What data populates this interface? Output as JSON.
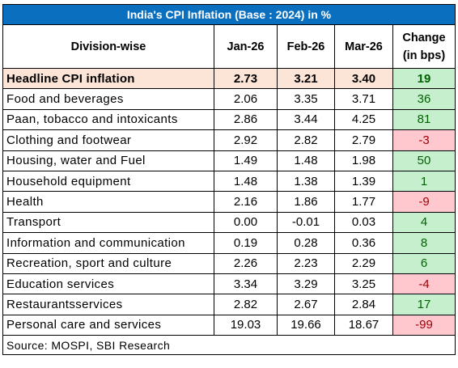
{
  "title": "India's CPI Inflation (Base : 2024) in %",
  "headers": {
    "division": "Division-wise",
    "jan": "Jan-26",
    "feb": "Feb-26",
    "mar": "Mar-26",
    "change_line1": "Change",
    "change_line2": "(in bps)"
  },
  "rows": [
    {
      "name": "Headline CPI inflation",
      "jan": "2.73",
      "feb": "3.21",
      "mar": "3.40",
      "change": "19",
      "sign": "pos",
      "headline": true
    },
    {
      "name": "Food and beverages",
      "jan": "2.06",
      "feb": "3.35",
      "mar": "3.71",
      "change": "36",
      "sign": "pos"
    },
    {
      "name": "Paan, tobacco and intoxicants",
      "jan": "2.86",
      "feb": "3.44",
      "mar": "4.25",
      "change": "81",
      "sign": "pos"
    },
    {
      "name": "Clothing and footwear",
      "jan": "2.92",
      "feb": "2.82",
      "mar": "2.79",
      "change": "-3",
      "sign": "neg"
    },
    {
      "name": "Housing, water and Fuel",
      "jan": "1.49",
      "feb": "1.48",
      "mar": "1.98",
      "change": "50",
      "sign": "pos"
    },
    {
      "name": "Household equipment",
      "jan": "1.48",
      "feb": "1.38",
      "mar": "1.39",
      "change": "1",
      "sign": "pos"
    },
    {
      "name": "Health",
      "jan": "2.16",
      "feb": "1.86",
      "mar": "1.77",
      "change": "-9",
      "sign": "neg"
    },
    {
      "name": "Transport",
      "jan": "0.00",
      "feb": "-0.01",
      "mar": "0.03",
      "change": "4",
      "sign": "pos"
    },
    {
      "name": "Information and communication",
      "jan": "0.19",
      "feb": "0.28",
      "mar": "0.36",
      "change": "8",
      "sign": "pos"
    },
    {
      "name": "Recreation, sport and culture",
      "jan": "2.26",
      "feb": "2.23",
      "mar": "2.29",
      "change": "6",
      "sign": "pos"
    },
    {
      "name": "Education services",
      "jan": "3.34",
      "feb": "3.29",
      "mar": "3.25",
      "change": "-4",
      "sign": "neg"
    },
    {
      "name": "Restaurantsservices",
      "jan": "2.82",
      "feb": "2.67",
      "mar": "2.84",
      "change": "17",
      "sign": "pos"
    },
    {
      "name": "Personal care and  services",
      "jan": "19.03",
      "feb": "19.66",
      "mar": "18.67",
      "change": "-99",
      "sign": "neg"
    }
  ],
  "source": "Source: MOSPI, SBI Research",
  "colors": {
    "title_bg": "#0b6fbf",
    "headline_bg": "#fce4d6",
    "positive_bg": "#c6efce",
    "positive_text": "#006100",
    "negative_bg": "#ffc7ce",
    "negative_text": "#9c0006"
  }
}
